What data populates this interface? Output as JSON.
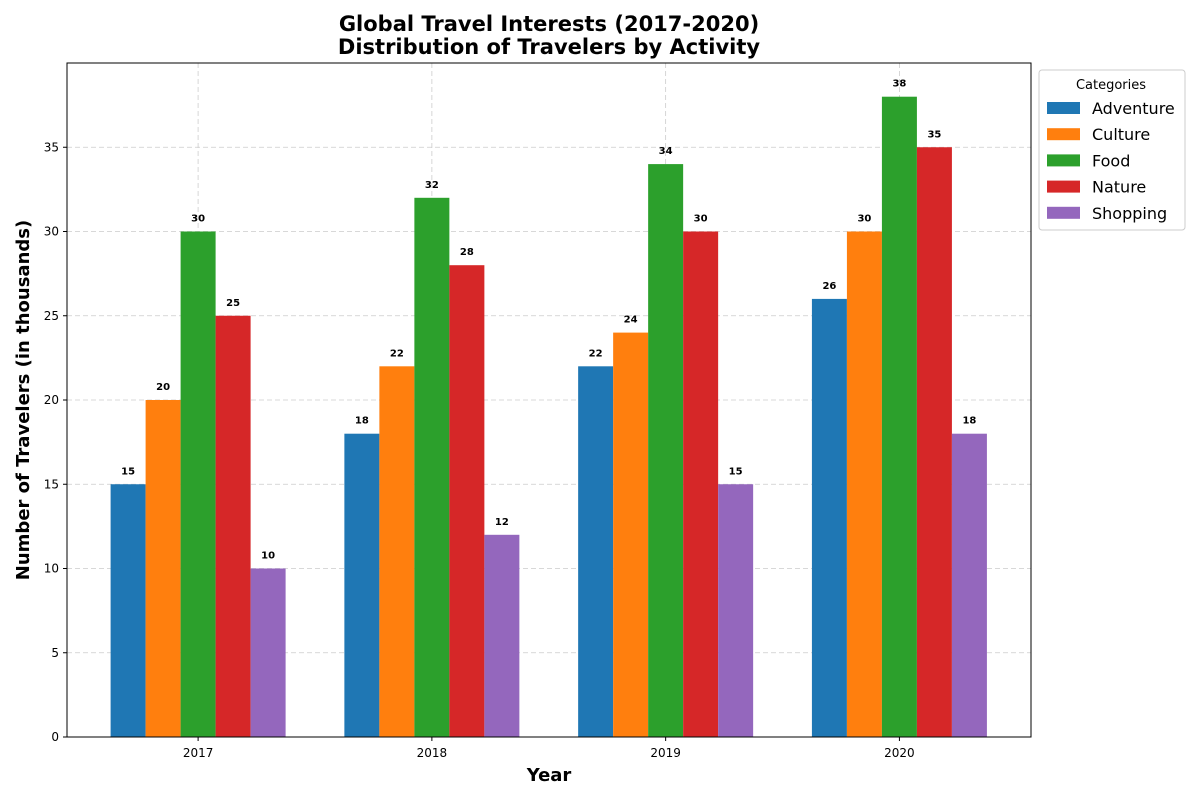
{
  "chart_data": {
    "type": "bar",
    "title": "Global Travel Interests (2017-2020)",
    "subtitle": "Distribution of Travelers by Activity",
    "xlabel": "Year",
    "ylabel": "Number of Travelers (in thousands)",
    "categories": [
      "2017",
      "2018",
      "2019",
      "2020"
    ],
    "ylim": [
      0,
      40
    ],
    "yticks": [
      0,
      5,
      10,
      15,
      20,
      25,
      30,
      35
    ],
    "grid": true,
    "legend": {
      "title": "Categories",
      "placement": "outside-top-right"
    },
    "series": [
      {
        "name": "Adventure",
        "color": "#1f77b4",
        "values": [
          15,
          18,
          22,
          26
        ]
      },
      {
        "name": "Culture",
        "color": "#ff7f0e",
        "values": [
          20,
          22,
          24,
          30
        ]
      },
      {
        "name": "Food",
        "color": "#2ca02c",
        "values": [
          30,
          32,
          34,
          38
        ]
      },
      {
        "name": "Nature",
        "color": "#d62728",
        "values": [
          25,
          28,
          30,
          35
        ]
      },
      {
        "name": "Shopping",
        "color": "#9467bd",
        "values": [
          10,
          12,
          15,
          18
        ]
      }
    ]
  }
}
